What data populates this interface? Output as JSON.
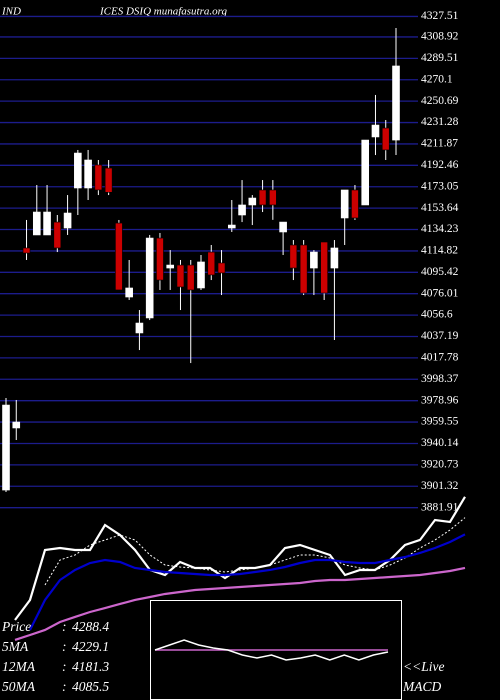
{
  "chart_data": [
    {
      "type": "candlestick",
      "title_parts": [
        "IND",
        "ICES DSIQ munafasutra.org"
      ],
      "up_color": "#ffffff",
      "down_color": "#cc0000",
      "grid_color": "#1c1c8c",
      "grid": true,
      "ylim": [
        3868,
        4337
      ],
      "yticks": [
        4327.51,
        4308.92,
        4289.51,
        4270.1,
        4250.69,
        4231.28,
        4211.87,
        4192.46,
        4173.05,
        4153.64,
        4134.23,
        4114.82,
        4095.42,
        4076.01,
        4056.6,
        4037.19,
        4017.78,
        3998.37,
        3978.96,
        3959.55,
        3940.14,
        3920.73,
        3901.32,
        3881.91
      ],
      "open": [
        3897.9,
        3954.2,
        4117.5,
        4129.3,
        4129.3,
        4141.0,
        4135.6,
        4171.9,
        4171.9,
        4192.8,
        4190.0,
        4140.1,
        4073.0,
        4040.4,
        4054.0,
        4126.5,
        4099.3,
        4102.0,
        4102.0,
        4081.2,
        4113.8,
        4103.9,
        4135.6,
        4147.4,
        4156.5,
        4170.1,
        4170.1,
        4132.0,
        4120.2,
        4120.2,
        4099.3,
        4122.9,
        4099.3,
        4144.7,
        4170.1,
        4156.5,
        4218.2,
        4226.3,
        4215.4
      ],
      "high": [
        3981.4,
        3979.6,
        4142.9,
        4174.6,
        4174.6,
        4147.4,
        4165.5,
        4206.4,
        4206.4,
        4197.3,
        4197.3,
        4142.9,
        4106.6,
        4061.2,
        4129.3,
        4131.1,
        4115.6,
        4106.6,
        4106.6,
        4111.1,
        4120.2,
        4115.6,
        4161.0,
        4179.1,
        4165.5,
        4179.1,
        4179.1,
        4141.0,
        4124.7,
        4124.7,
        4115.6,
        4122.9,
        4124.7,
        4170.1,
        4174.6,
        4215.4,
        4256.3,
        4233.6,
        4317.0
      ],
      "low": [
        3896.1,
        3943.3,
        4106.6,
        4129.3,
        4129.3,
        4113.8,
        4129.3,
        4147.4,
        4161.0,
        4165.5,
        4165.5,
        4079.4,
        4070.3,
        4024.9,
        4052.1,
        4079.4,
        4079.4,
        4061.2,
        4013.1,
        4079.4,
        4088.4,
        4074.8,
        4132.0,
        4141.0,
        4138.3,
        4150.1,
        4143.0,
        4111.1,
        4088.4,
        4074.8,
        4074.8,
        4070.3,
        4034.0,
        4120.2,
        4142.9,
        4156.5,
        4201.8,
        4197.3,
        4201.8
      ],
      "close": [
        3975.0,
        3959.6,
        4112.9,
        4150.1,
        4150.1,
        4117.5,
        4149.2,
        4203.6,
        4197.3,
        4170.1,
        4168.0,
        4079.4,
        4081.2,
        4049.4,
        4126.5,
        4088.4,
        4102.0,
        4082.1,
        4079.4,
        4104.8,
        4093.0,
        4094.8,
        4138.3,
        4156.5,
        4162.8,
        4156.5,
        4156.5,
        4141.0,
        4099.3,
        4076.6,
        4113.8,
        4076.6,
        4117.5,
        4170.1,
        4144.7,
        4215.4,
        4229.0,
        4206.4,
        4282.6
      ]
    },
    {
      "type": "line",
      "ylim": [
        3880,
        4308
      ],
      "separator": ":",
      "series": [
        {
          "name": "Price",
          "color": "#ffffff",
          "dashed": false,
          "values": [
            3937.1,
            3994.2,
            4136.8,
            4142.5,
            4136.8,
            4136.8,
            4208.1,
            4179.6,
            4136.8,
            4079.8,
            4065.5,
            4102.6,
            4085.5,
            4085.5,
            4056.9,
            4085.5,
            4085.5,
            4094.0,
            4142.5,
            4151.1,
            4136.8,
            4122.5,
            4065.5,
            4079.8,
            4079.8,
            4108.3,
            4151.1,
            4165.4,
            4222.4,
            4216.7,
            4288.4
          ]
        },
        {
          "name": "5MA",
          "color": "#ffffff",
          "dashed": true,
          "values": [
            null,
            null,
            4037.0,
            4108.3,
            4122.5,
            4151.1,
            4165.4,
            4179.6,
            4165.4,
            4122.5,
            4094.0,
            4088.3,
            4085.5,
            4079.8,
            4074.1,
            4079.8,
            4085.5,
            4094.0,
            4108.3,
            4122.5,
            4122.5,
            4114.0,
            4094.0,
            4085.5,
            4079.8,
            4094.0,
            4114.0,
            4142.5,
            4165.4,
            4193.9,
            4229.1
          ]
        },
        {
          "name": "12MA",
          "color": "#0000cc",
          "dashed": false,
          "values": [
            null,
            3908.6,
            3994.2,
            4051.2,
            4079.8,
            4099.7,
            4108.3,
            4102.6,
            4085.5,
            4079.8,
            4074.1,
            4071.2,
            4068.3,
            4065.5,
            4065.5,
            4068.3,
            4074.1,
            4079.8,
            4088.3,
            4099.7,
            4108.3,
            4108.3,
            4102.6,
            4099.7,
            4099.7,
            4108.3,
            4116.8,
            4128.3,
            4142.5,
            4159.6,
            4181.3
          ]
        },
        {
          "name": "50MA",
          "color": "#cc66cc",
          "dashed": false,
          "values": [
            3880.1,
            3894.3,
            3908.6,
            3931.4,
            3945.7,
            3959.9,
            3971.3,
            3982.8,
            3994.2,
            4002.7,
            4011.3,
            4017.0,
            4022.7,
            4025.6,
            4028.4,
            4031.3,
            4034.1,
            4037.0,
            4039.8,
            4042.7,
            4048.4,
            4051.2,
            4051.2,
            4054.1,
            4056.9,
            4059.8,
            4062.6,
            4065.5,
            4071.2,
            4076.9,
            4085.5
          ]
        }
      ]
    },
    {
      "type": "macd",
      "ylim": [
        -50,
        50
      ],
      "label_lines": [
        "<<Live",
        "MACD"
      ],
      "series": [
        {
          "color": "#ffffff",
          "values": [
            0,
            5,
            10,
            5,
            2,
            0,
            -5,
            -8,
            -5,
            -10,
            -8,
            -5,
            -10,
            -5,
            -10,
            -5,
            -2
          ]
        },
        {
          "color": "#cc66cc",
          "values": [
            0,
            0,
            0,
            0,
            0,
            0,
            0,
            0,
            0,
            0,
            0,
            0,
            0,
            0,
            0,
            0,
            0
          ]
        }
      ]
    }
  ]
}
